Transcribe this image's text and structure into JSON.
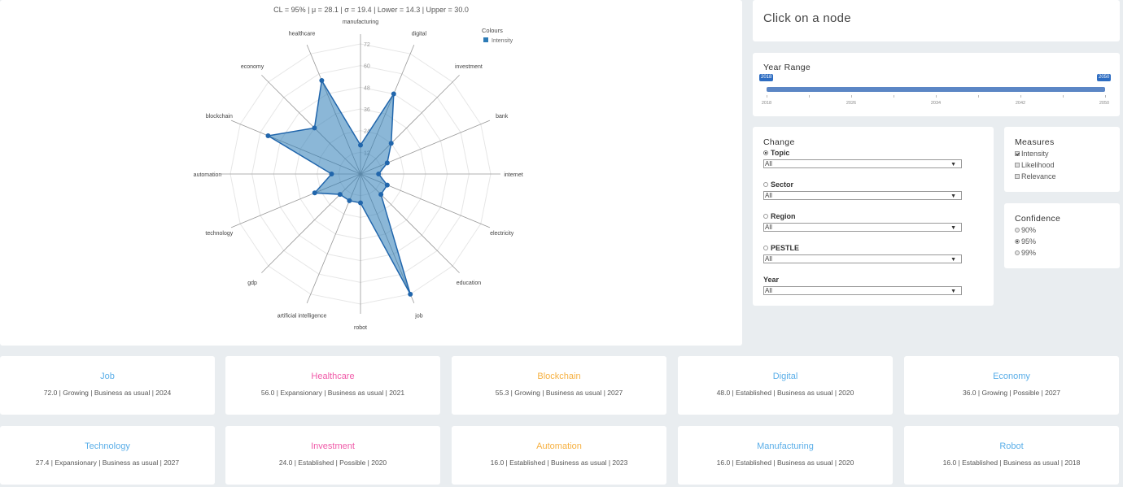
{
  "stats_line": "CL = 95% | μ = 28.1 | σ = 19.4 | Lower = 14.3 | Upper = 30.0",
  "legend": {
    "title": "Colours",
    "item": "Intensity",
    "color": "#2c7bb6"
  },
  "chart_data": {
    "type": "radar",
    "max": 72,
    "ticks": [
      12,
      24,
      36,
      48,
      60,
      72
    ],
    "categories": [
      "manufacturing",
      "digital",
      "investment",
      "bank",
      "internet",
      "electricity",
      "education",
      "job",
      "robot",
      "artificial intelligence",
      "gdp",
      "technology",
      "automation",
      "blockchain",
      "economy",
      "healthcare"
    ],
    "series": [
      {
        "name": "Intensity",
        "values": [
          16,
          48,
          24,
          16,
          10,
          16,
          16,
          72,
          16,
          16,
          16,
          27.4,
          16,
          55.3,
          36,
          56
        ]
      }
    ]
  },
  "node_panel": {
    "text": "Click on a node"
  },
  "year_range": {
    "title": "Year Range",
    "min_label": "2018",
    "max_label": "2050",
    "ticks": [
      "2018",
      "2026",
      "2034",
      "2042",
      "2050"
    ]
  },
  "change": {
    "title": "Change",
    "filters": [
      {
        "label": "Topic",
        "value": "All"
      },
      {
        "label": "Sector",
        "value": "All"
      },
      {
        "label": "Region",
        "value": "All"
      },
      {
        "label": "PESTLE",
        "value": "All"
      }
    ],
    "year_label": "Year",
    "year_value": "All",
    "arrow": "▼"
  },
  "measures": {
    "title": "Measures",
    "items": [
      "Intensity",
      "Likelihood",
      "Relevance"
    ]
  },
  "confidence": {
    "title": "Confidence",
    "items": [
      "90%",
      "95%",
      "99%"
    ]
  },
  "cards": [
    {
      "title": "Job",
      "sub": "72.0 | Growing | Business as usual | 2024",
      "color": "#5aaee8"
    },
    {
      "title": "Healthcare",
      "sub": "56.0 | Expansionary | Business as usual | 2021",
      "color": "#f05aa8"
    },
    {
      "title": "Blockchain",
      "sub": "55.3 | Growing | Business as usual | 2027",
      "color": "#f6b040"
    },
    {
      "title": "Digital",
      "sub": "48.0 | Established | Business as usual | 2020",
      "color": "#5aaee8"
    },
    {
      "title": "Economy",
      "sub": "36.0 | Growing | Possible | 2027",
      "color": "#5aaee8"
    },
    {
      "title": "Technology",
      "sub": "27.4 | Expansionary | Business as usual | 2027",
      "color": "#5aaee8"
    },
    {
      "title": "Investment",
      "sub": "24.0 | Established | Possible | 2020",
      "color": "#f05aa8"
    },
    {
      "title": "Automation",
      "sub": "16.0 | Established | Business as usual | 2023",
      "color": "#f6b040"
    },
    {
      "title": "Manufacturing",
      "sub": "16.0 | Established | Business as usual | 2020",
      "color": "#5aaee8"
    },
    {
      "title": "Robot",
      "sub": "16.0 | Established | Business as usual | 2018",
      "color": "#5aaee8"
    }
  ]
}
